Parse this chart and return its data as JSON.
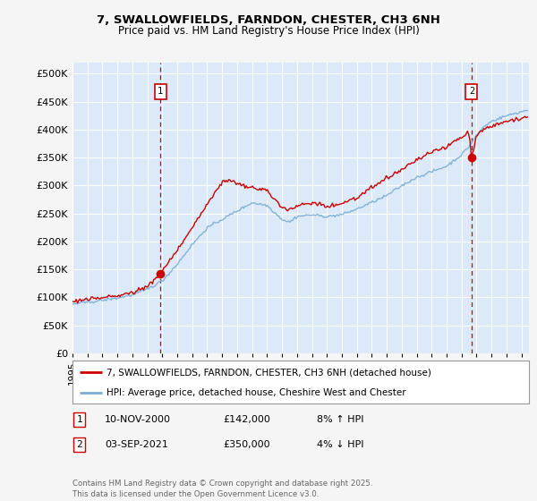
{
  "title_line1": "7, SWALLOWFIELDS, FARNDON, CHESTER, CH3 6NH",
  "title_line2": "Price paid vs. HM Land Registry's House Price Index (HPI)",
  "ylabel_ticks": [
    "£0",
    "£50K",
    "£100K",
    "£150K",
    "£200K",
    "£250K",
    "£300K",
    "£350K",
    "£400K",
    "£450K",
    "£500K"
  ],
  "ytick_values": [
    0,
    50000,
    100000,
    150000,
    200000,
    250000,
    300000,
    350000,
    400000,
    450000,
    500000
  ],
  "ylim": [
    0,
    520000
  ],
  "xlim_start": 1995.0,
  "xlim_end": 2025.5,
  "fig_bg_color": "#f5f5f5",
  "chart_bg_color": "#dce9f8",
  "grid_color": "#ffffff",
  "red_line_color": "#cc0000",
  "blue_line_color": "#7aadd4",
  "marker1_date": 2000.87,
  "marker1_value": 142000,
  "marker2_date": 2021.67,
  "marker2_value": 350000,
  "legend_label1": "7, SWALLOWFIELDS, FARNDON, CHESTER, CH3 6NH (detached house)",
  "legend_label2": "HPI: Average price, detached house, Cheshire West and Chester",
  "table_row1": [
    "1",
    "10-NOV-2000",
    "£142,000",
    "8% ↑ HPI"
  ],
  "table_row2": [
    "2",
    "03-SEP-2021",
    "£350,000",
    "4% ↓ HPI"
  ],
  "footer_text": "Contains HM Land Registry data © Crown copyright and database right 2025.\nThis data is licensed under the Open Government Licence v3.0.",
  "x_tick_years": [
    1995,
    1996,
    1997,
    1998,
    1999,
    2000,
    2001,
    2002,
    2003,
    2004,
    2005,
    2006,
    2007,
    2008,
    2009,
    2010,
    2011,
    2012,
    2013,
    2014,
    2015,
    2016,
    2017,
    2018,
    2019,
    2020,
    2021,
    2022,
    2023,
    2024,
    2025
  ]
}
